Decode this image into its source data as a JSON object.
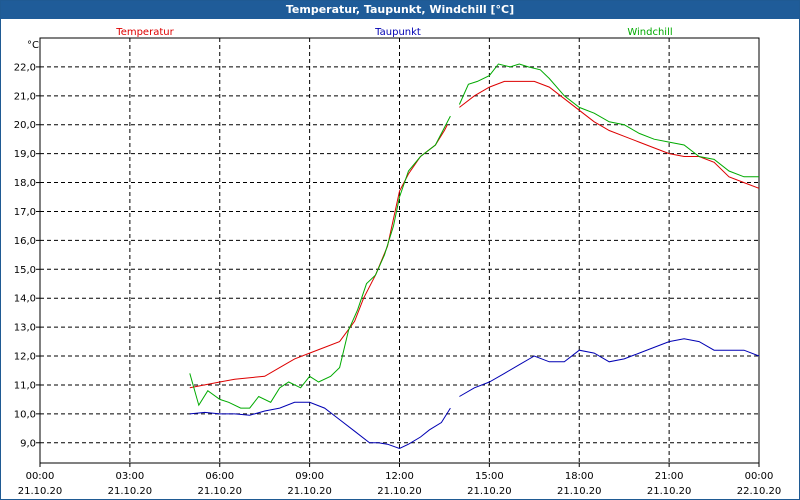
{
  "window": {
    "title": "Temperatur, Taupunkt, Windchill [°C]"
  },
  "chart_data": {
    "type": "line",
    "title": "Temperatur, Taupunkt, Windchill [°C]",
    "ylabel": "°C",
    "xlabel": "",
    "ylim": [
      8.3,
      23.0
    ],
    "xlim": [
      0,
      24
    ],
    "grid": true,
    "yticks": [
      {
        "value": 9.0,
        "label": "9,0"
      },
      {
        "value": 10.0,
        "label": "10,0"
      },
      {
        "value": 11.0,
        "label": "11,0"
      },
      {
        "value": 12.0,
        "label": "12,0"
      },
      {
        "value": 13.0,
        "label": "13,0"
      },
      {
        "value": 14.0,
        "label": "14,0"
      },
      {
        "value": 15.0,
        "label": "15,0"
      },
      {
        "value": 16.0,
        "label": "16,0"
      },
      {
        "value": 17.0,
        "label": "17,0"
      },
      {
        "value": 18.0,
        "label": "18,0"
      },
      {
        "value": 19.0,
        "label": "19,0"
      },
      {
        "value": 20.0,
        "label": "20,0"
      },
      {
        "value": 21.0,
        "label": "21,0"
      },
      {
        "value": 22.0,
        "label": "22,0"
      }
    ],
    "xticks": [
      {
        "value": 0,
        "time": "00:00",
        "date": "21.10.20"
      },
      {
        "value": 3,
        "time": "03:00",
        "date": "21.10.20"
      },
      {
        "value": 6,
        "time": "06:00",
        "date": "21.10.20"
      },
      {
        "value": 9,
        "time": "09:00",
        "date": "21.10.20"
      },
      {
        "value": 12,
        "time": "12:00",
        "date": "21.10.20"
      },
      {
        "value": 15,
        "time": "15:00",
        "date": "21.10.20"
      },
      {
        "value": 18,
        "time": "18:00",
        "date": "21.10.20"
      },
      {
        "value": 21,
        "time": "21:00",
        "date": "21.10.20"
      },
      {
        "value": 24,
        "time": "00:00",
        "date": "22.10.20"
      }
    ],
    "legend_position": "top",
    "series": [
      {
        "name": "Temperatur",
        "color": "#dd0000",
        "segments": [
          [
            [
              5.0,
              10.9
            ],
            [
              5.5,
              11.0
            ],
            [
              6.0,
              11.1
            ],
            [
              6.5,
              11.2
            ],
            [
              7.0,
              11.25
            ],
            [
              7.5,
              11.3
            ],
            [
              8.0,
              11.6
            ],
            [
              8.5,
              11.9
            ],
            [
              9.0,
              12.1
            ],
            [
              9.5,
              12.3
            ],
            [
              10.0,
              12.5
            ],
            [
              10.5,
              13.2
            ],
            [
              10.8,
              14.0
            ],
            [
              11.2,
              14.8
            ],
            [
              11.6,
              15.8
            ],
            [
              12.0,
              17.7
            ],
            [
              12.3,
              18.3
            ],
            [
              12.7,
              18.9
            ],
            [
              13.2,
              19.3
            ],
            [
              13.5,
              19.8
            ],
            [
              13.6,
              20.0
            ]
          ],
          [
            [
              14.0,
              20.6
            ],
            [
              14.5,
              21.0
            ],
            [
              15.0,
              21.3
            ],
            [
              15.5,
              21.5
            ],
            [
              16.0,
              21.5
            ],
            [
              16.5,
              21.5
            ],
            [
              17.0,
              21.3
            ],
            [
              17.5,
              20.9
            ],
            [
              18.0,
              20.5
            ],
            [
              18.5,
              20.1
            ],
            [
              19.0,
              19.8
            ],
            [
              19.5,
              19.6
            ],
            [
              20.0,
              19.4
            ],
            [
              20.5,
              19.2
            ],
            [
              21.0,
              19.0
            ],
            [
              21.5,
              18.9
            ],
            [
              22.0,
              18.9
            ],
            [
              22.5,
              18.7
            ],
            [
              23.0,
              18.2
            ],
            [
              23.5,
              18.0
            ],
            [
              24.0,
              17.8
            ]
          ]
        ]
      },
      {
        "name": "Taupunkt",
        "color": "#0000b3",
        "segments": [
          [
            [
              5.0,
              10.0
            ],
            [
              5.5,
              10.05
            ],
            [
              6.0,
              10.0
            ],
            [
              6.5,
              10.0
            ],
            [
              7.0,
              9.95
            ],
            [
              7.5,
              10.1
            ],
            [
              8.0,
              10.2
            ],
            [
              8.5,
              10.4
            ],
            [
              9.0,
              10.4
            ],
            [
              9.5,
              10.2
            ],
            [
              10.0,
              9.8
            ],
            [
              10.5,
              9.4
            ],
            [
              11.0,
              9.0
            ],
            [
              11.3,
              9.0
            ],
            [
              11.6,
              8.95
            ],
            [
              12.0,
              8.8
            ],
            [
              12.3,
              8.95
            ],
            [
              12.7,
              9.2
            ],
            [
              13.0,
              9.45
            ],
            [
              13.4,
              9.7
            ],
            [
              13.7,
              10.2
            ]
          ],
          [
            [
              14.0,
              10.6
            ],
            [
              14.5,
              10.9
            ],
            [
              15.0,
              11.1
            ],
            [
              15.5,
              11.4
            ],
            [
              16.0,
              11.7
            ],
            [
              16.5,
              12.0
            ],
            [
              17.0,
              11.8
            ],
            [
              17.5,
              11.8
            ],
            [
              18.0,
              12.2
            ],
            [
              18.5,
              12.1
            ],
            [
              19.0,
              11.8
            ],
            [
              19.5,
              11.9
            ],
            [
              20.0,
              12.1
            ],
            [
              20.5,
              12.3
            ],
            [
              21.0,
              12.5
            ],
            [
              21.5,
              12.6
            ],
            [
              22.0,
              12.5
            ],
            [
              22.5,
              12.2
            ],
            [
              23.0,
              12.2
            ],
            [
              23.5,
              12.2
            ],
            [
              24.0,
              12.0
            ]
          ]
        ]
      },
      {
        "name": "Windchill",
        "color": "#00aa00",
        "segments": [
          [
            [
              5.0,
              11.4
            ],
            [
              5.3,
              10.3
            ],
            [
              5.6,
              10.8
            ],
            [
              6.0,
              10.5
            ],
            [
              6.3,
              10.4
            ],
            [
              6.7,
              10.2
            ],
            [
              7.0,
              10.2
            ],
            [
              7.3,
              10.6
            ],
            [
              7.7,
              10.4
            ],
            [
              8.0,
              10.9
            ],
            [
              8.3,
              11.1
            ],
            [
              8.7,
              10.9
            ],
            [
              9.0,
              11.3
            ],
            [
              9.3,
              11.1
            ],
            [
              9.7,
              11.3
            ],
            [
              10.0,
              11.6
            ],
            [
              10.3,
              12.9
            ],
            [
              10.6,
              13.6
            ],
            [
              10.9,
              14.5
            ],
            [
              11.2,
              14.8
            ],
            [
              11.5,
              15.5
            ],
            [
              11.8,
              16.5
            ],
            [
              12.0,
              17.5
            ],
            [
              12.3,
              18.4
            ],
            [
              12.7,
              18.9
            ],
            [
              13.2,
              19.3
            ],
            [
              13.5,
              19.9
            ],
            [
              13.7,
              20.3
            ]
          ],
          [
            [
              14.0,
              20.7
            ],
            [
              14.3,
              21.4
            ],
            [
              14.6,
              21.5
            ],
            [
              15.0,
              21.7
            ],
            [
              15.3,
              22.1
            ],
            [
              15.7,
              22.0
            ],
            [
              16.0,
              22.1
            ],
            [
              16.3,
              22.0
            ],
            [
              16.7,
              21.9
            ],
            [
              17.0,
              21.6
            ],
            [
              17.5,
              21.0
            ],
            [
              18.0,
              20.6
            ],
            [
              18.5,
              20.4
            ],
            [
              19.0,
              20.1
            ],
            [
              19.5,
              20.0
            ],
            [
              20.0,
              19.7
            ],
            [
              20.5,
              19.5
            ],
            [
              21.0,
              19.4
            ],
            [
              21.5,
              19.3
            ],
            [
              22.0,
              18.9
            ],
            [
              22.5,
              18.8
            ],
            [
              23.0,
              18.4
            ],
            [
              23.5,
              18.2
            ],
            [
              24.0,
              18.2
            ]
          ]
        ]
      }
    ]
  }
}
